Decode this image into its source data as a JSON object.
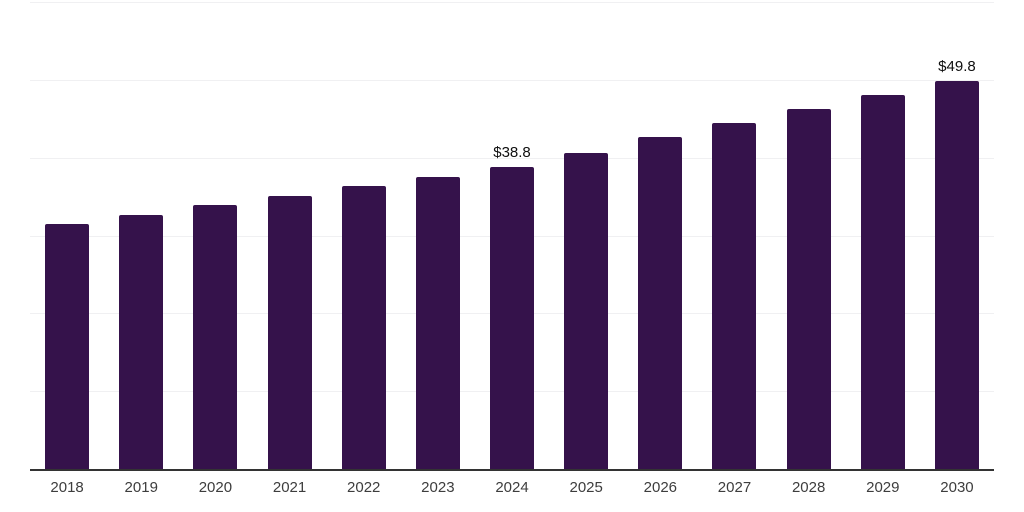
{
  "chart_data": {
    "type": "bar",
    "title": "",
    "xlabel": "",
    "ylabel": "",
    "categories": [
      "2018",
      "2019",
      "2020",
      "2021",
      "2022",
      "2023",
      "2024",
      "2025",
      "2026",
      "2027",
      "2028",
      "2029",
      "2030"
    ],
    "values": [
      31.5,
      32.7,
      33.9,
      35.1,
      36.3,
      37.5,
      38.8,
      40.6,
      42.7,
      44.4,
      46.2,
      48.0,
      49.8
    ],
    "data_labels": [
      "",
      "",
      "",
      "",
      "",
      "",
      "$38.8",
      "",
      "",
      "",
      "",
      "",
      "$49.8"
    ],
    "ylim": [
      0,
      60
    ],
    "gridline_step": 10,
    "grid": true,
    "legend": false,
    "colors": {
      "bar": "#35124b",
      "axis_line": "#333333",
      "gridline": "#f0f0f2",
      "tick_label": "#3d3d3d",
      "data_label": "#0f0f0f",
      "background": "#ffffff"
    }
  }
}
